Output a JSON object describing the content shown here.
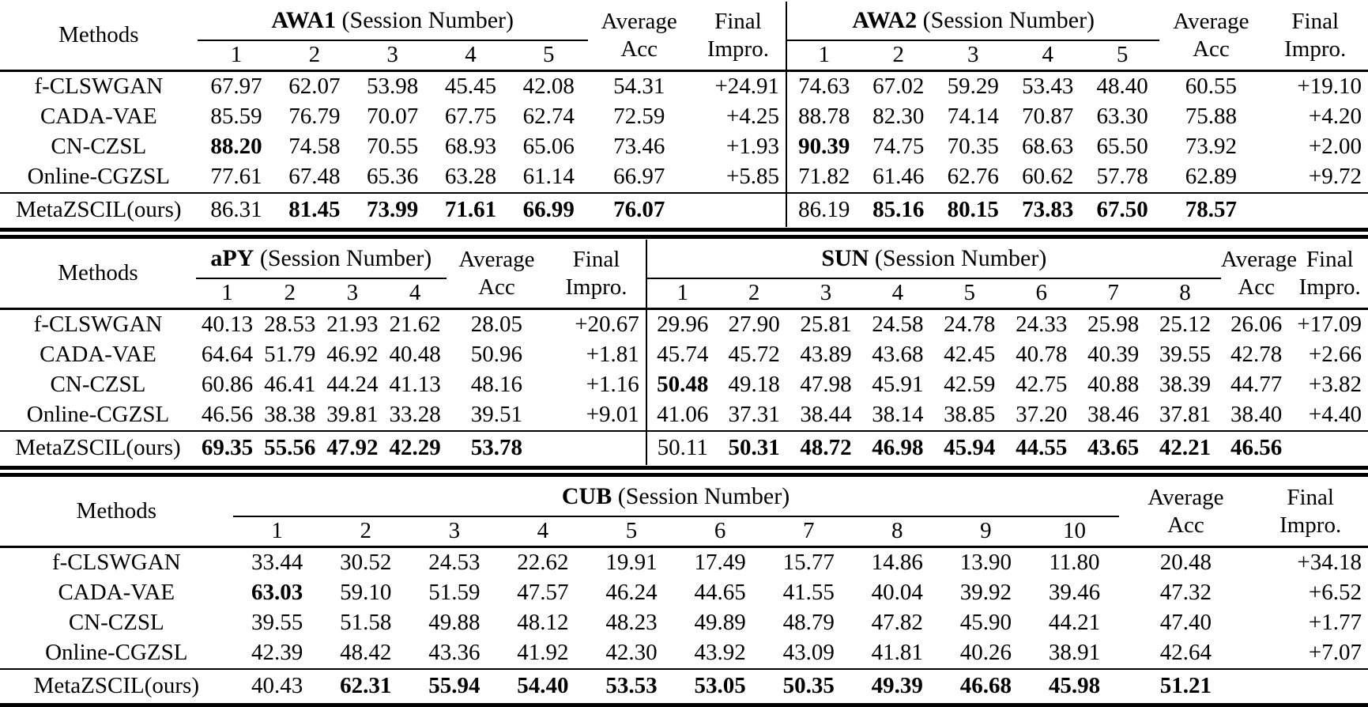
{
  "page": {
    "background": "#ffffff",
    "text_color": "#000000",
    "rule_color": "#000000"
  },
  "labels": {
    "methods": "Methods",
    "average_1": "Average",
    "average_2": "Acc",
    "final_1": "Final",
    "final_2": "Impro."
  },
  "tables": [
    {
      "name": "awa1-awa2",
      "blocks": [
        {
          "dataset": "AWA1",
          "subtitle": " (Session Number)",
          "sessions": [
            "1",
            "2",
            "3",
            "4",
            "5"
          ],
          "divider": false
        },
        {
          "dataset": "AWA2",
          "subtitle": " (Session Number)",
          "sessions": [
            "1",
            "2",
            "3",
            "4",
            "5"
          ],
          "divider": true
        }
      ],
      "rows": [
        {
          "method": "f-CLSWGAN",
          "final_row": false,
          "blocks": [
            {
              "values": [
                "67.97",
                "62.07",
                "53.98",
                "45.45",
                "42.08"
              ],
              "bold_idx": [],
              "avg": "54.31",
              "avg_bold": false,
              "impro": "+24.91"
            },
            {
              "values": [
                "74.63",
                "67.02",
                "59.29",
                "53.43",
                "48.40"
              ],
              "bold_idx": [],
              "avg": "60.55",
              "avg_bold": false,
              "impro": "+19.10"
            }
          ]
        },
        {
          "method": "CADA-VAE",
          "final_row": false,
          "blocks": [
            {
              "values": [
                "85.59",
                "76.79",
                "70.07",
                "67.75",
                "62.74"
              ],
              "bold_idx": [],
              "avg": "72.59",
              "avg_bold": false,
              "impro": "+4.25"
            },
            {
              "values": [
                "88.78",
                "82.30",
                "74.14",
                "70.87",
                "63.30"
              ],
              "bold_idx": [],
              "avg": "75.88",
              "avg_bold": false,
              "impro": "+4.20"
            }
          ]
        },
        {
          "method": "CN-CZSL",
          "final_row": false,
          "blocks": [
            {
              "values": [
                "88.20",
                "74.58",
                "70.55",
                "68.93",
                "65.06"
              ],
              "bold_idx": [
                0
              ],
              "avg": "73.46",
              "avg_bold": false,
              "impro": "+1.93"
            },
            {
              "values": [
                "90.39",
                "74.75",
                "70.35",
                "68.63",
                "65.50"
              ],
              "bold_idx": [
                0
              ],
              "avg": "73.92",
              "avg_bold": false,
              "impro": "+2.00"
            }
          ]
        },
        {
          "method": "Online-CGZSL",
          "final_row": false,
          "blocks": [
            {
              "values": [
                "77.61",
                "67.48",
                "65.36",
                "63.28",
                "61.14"
              ],
              "bold_idx": [],
              "avg": "66.97",
              "avg_bold": false,
              "impro": "+5.85"
            },
            {
              "values": [
                "71.82",
                "61.46",
                "62.76",
                "60.62",
                "57.78"
              ],
              "bold_idx": [],
              "avg": "62.89",
              "avg_bold": false,
              "impro": "+9.72"
            }
          ]
        },
        {
          "method": "MetaZSCIL(ours)",
          "final_row": true,
          "blocks": [
            {
              "values": [
                "86.31",
                "81.45",
                "73.99",
                "71.61",
                "66.99"
              ],
              "bold_idx": [
                1,
                2,
                3,
                4
              ],
              "avg": "76.07",
              "avg_bold": true,
              "impro": ""
            },
            {
              "values": [
                "86.19",
                "85.16",
                "80.15",
                "73.83",
                "67.50"
              ],
              "bold_idx": [
                1,
                2,
                3,
                4
              ],
              "avg": "78.57",
              "avg_bold": true,
              "impro": ""
            }
          ]
        }
      ]
    },
    {
      "name": "apy-sun",
      "blocks": [
        {
          "dataset": "aPY",
          "subtitle": " (Session Number)",
          "sessions": [
            "1",
            "2",
            "3",
            "4"
          ],
          "divider": false
        },
        {
          "dataset": "SUN",
          "subtitle": " (Session Number)",
          "sessions": [
            "1",
            "2",
            "3",
            "4",
            "5",
            "6",
            "7",
            "8"
          ],
          "divider": true
        }
      ],
      "rows": [
        {
          "method": "f-CLSWGAN",
          "final_row": false,
          "blocks": [
            {
              "values": [
                "40.13",
                "28.53",
                "21.93",
                "21.62"
              ],
              "bold_idx": [],
              "avg": "28.05",
              "avg_bold": false,
              "impro": "+20.67"
            },
            {
              "values": [
                "29.96",
                "27.90",
                "25.81",
                "24.58",
                "24.78",
                "24.33",
                "25.98",
                "25.12"
              ],
              "bold_idx": [],
              "avg": "26.06",
              "avg_bold": false,
              "impro": "+17.09"
            }
          ]
        },
        {
          "method": "CADA-VAE",
          "final_row": false,
          "blocks": [
            {
              "values": [
                "64.64",
                "51.79",
                "46.92",
                "40.48"
              ],
              "bold_idx": [],
              "avg": "50.96",
              "avg_bold": false,
              "impro": "+1.81"
            },
            {
              "values": [
                "45.74",
                "45.72",
                "43.89",
                "43.68",
                "42.45",
                "40.78",
                "40.39",
                "39.55"
              ],
              "bold_idx": [],
              "avg": "42.78",
              "avg_bold": false,
              "impro": "+2.66"
            }
          ]
        },
        {
          "method": "CN-CZSL",
          "final_row": false,
          "blocks": [
            {
              "values": [
                "60.86",
                "46.41",
                "44.24",
                "41.13"
              ],
              "bold_idx": [],
              "avg": "48.16",
              "avg_bold": false,
              "impro": "+1.16"
            },
            {
              "values": [
                "50.48",
                "49.18",
                "47.98",
                "45.91",
                "42.59",
                "42.75",
                "40.88",
                "38.39"
              ],
              "bold_idx": [
                0
              ],
              "avg": "44.77",
              "avg_bold": false,
              "impro": "+3.82"
            }
          ]
        },
        {
          "method": "Online-CGZSL",
          "final_row": false,
          "blocks": [
            {
              "values": [
                "46.56",
                "38.38",
                "39.81",
                "33.28"
              ],
              "bold_idx": [],
              "avg": "39.51",
              "avg_bold": false,
              "impro": "+9.01"
            },
            {
              "values": [
                "41.06",
                "37.31",
                "38.44",
                "38.14",
                "38.85",
                "37.20",
                "38.46",
                "37.81"
              ],
              "bold_idx": [],
              "avg": "38.40",
              "avg_bold": false,
              "impro": "+4.40"
            }
          ]
        },
        {
          "method": "MetaZSCIL(ours)",
          "final_row": true,
          "blocks": [
            {
              "values": [
                "69.35",
                "55.56",
                "47.92",
                "42.29"
              ],
              "bold_idx": [
                0,
                1,
                2,
                3
              ],
              "avg": "53.78",
              "avg_bold": true,
              "impro": ""
            },
            {
              "values": [
                "50.11",
                "50.31",
                "48.72",
                "46.98",
                "45.94",
                "44.55",
                "43.65",
                "42.21"
              ],
              "bold_idx": [
                1,
                2,
                3,
                4,
                5,
                6,
                7
              ],
              "avg": "46.56",
              "avg_bold": true,
              "impro": ""
            }
          ]
        }
      ]
    },
    {
      "name": "cub",
      "blocks": [
        {
          "dataset": "CUB",
          "subtitle": " (Session Number)",
          "sessions": [
            "1",
            "2",
            "3",
            "4",
            "5",
            "6",
            "7",
            "8",
            "9",
            "10"
          ],
          "divider": false
        }
      ],
      "rows": [
        {
          "method": "f-CLSWGAN",
          "final_row": false,
          "blocks": [
            {
              "values": [
                "33.44",
                "30.52",
                "24.53",
                "22.62",
                "19.91",
                "17.49",
                "15.77",
                "14.86",
                "13.90",
                "11.80"
              ],
              "bold_idx": [],
              "avg": "20.48",
              "avg_bold": false,
              "impro": "+34.18"
            }
          ]
        },
        {
          "method": "CADA-VAE",
          "final_row": false,
          "blocks": [
            {
              "values": [
                "63.03",
                "59.10",
                "51.59",
                "47.57",
                "46.24",
                "44.65",
                "41.55",
                "40.04",
                "39.92",
                "39.46"
              ],
              "bold_idx": [
                0
              ],
              "avg": "47.32",
              "avg_bold": false,
              "impro": "+6.52"
            }
          ]
        },
        {
          "method": "CN-CZSL",
          "final_row": false,
          "blocks": [
            {
              "values": [
                "39.55",
                "51.58",
                "49.88",
                "48.12",
                "48.23",
                "49.89",
                "48.79",
                "47.82",
                "45.90",
                "44.21"
              ],
              "bold_idx": [],
              "avg": "47.40",
              "avg_bold": false,
              "impro": "+1.77"
            }
          ]
        },
        {
          "method": "Online-CGZSL",
          "final_row": false,
          "blocks": [
            {
              "values": [
                "42.39",
                "48.42",
                "43.36",
                "41.92",
                "42.30",
                "43.92",
                "43.09",
                "41.81",
                "40.26",
                "38.91"
              ],
              "bold_idx": [],
              "avg": "42.64",
              "avg_bold": false,
              "impro": "+7.07"
            }
          ]
        },
        {
          "method": "MetaZSCIL(ours)",
          "final_row": true,
          "blocks": [
            {
              "values": [
                "40.43",
                "62.31",
                "55.94",
                "54.40",
                "53.53",
                "53.05",
                "50.35",
                "49.39",
                "46.68",
                "45.98"
              ],
              "bold_idx": [
                1,
                2,
                3,
                4,
                5,
                6,
                7,
                8,
                9
              ],
              "avg": "51.21",
              "avg_bold": true,
              "impro": ""
            }
          ]
        }
      ]
    }
  ]
}
